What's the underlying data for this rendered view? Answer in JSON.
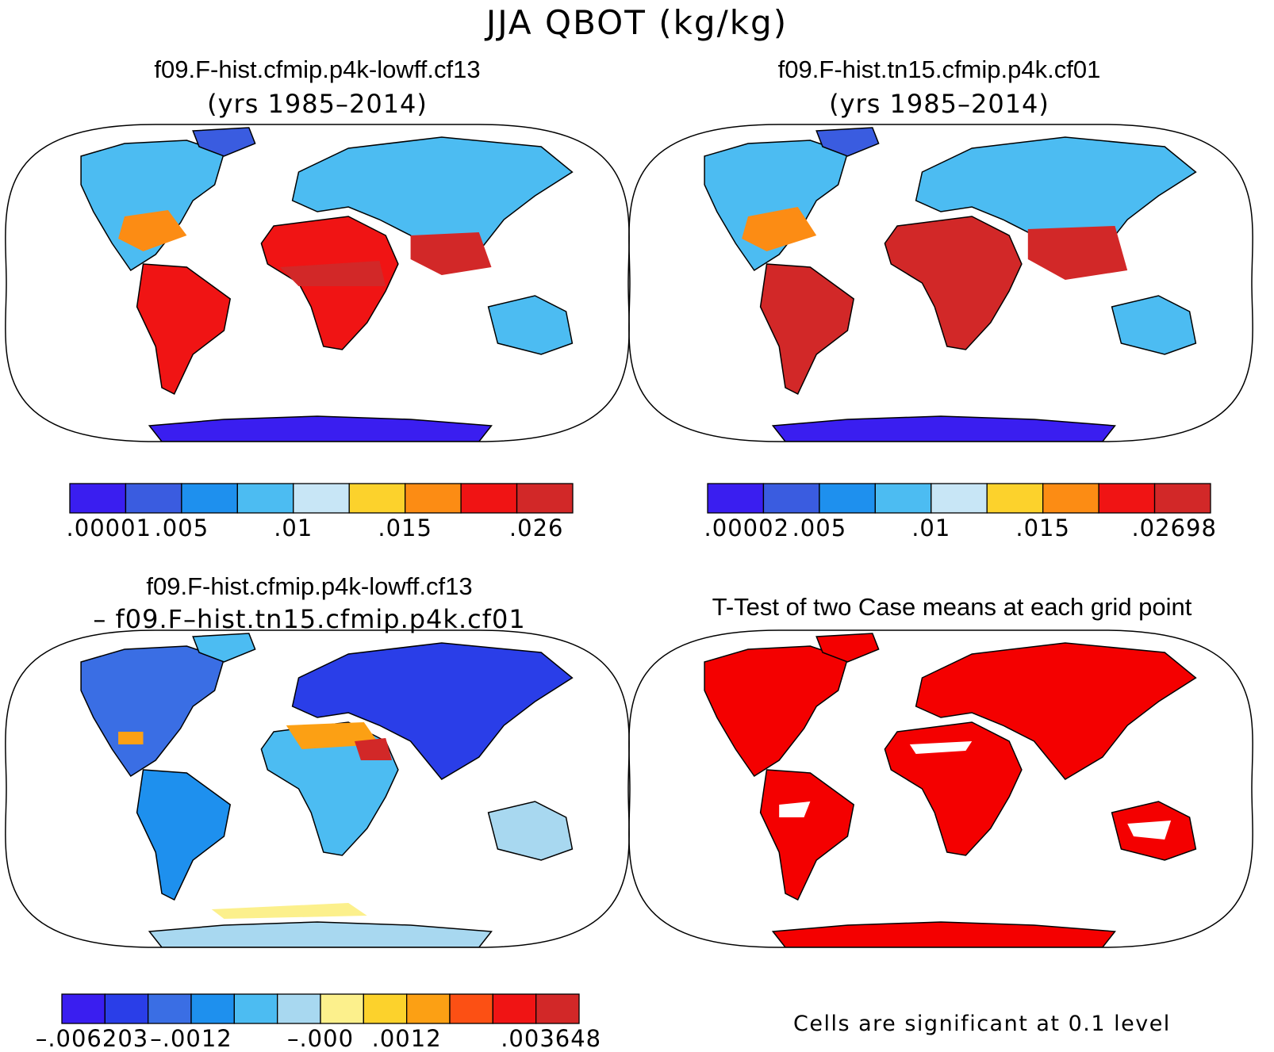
{
  "title": "JJA QBOT (kg/kg)",
  "panels": [
    {
      "name": "f09.F-hist.cfmip.p4k-lowff.cf13",
      "subtitle": "(yrs 1985–2014)",
      "colorbar": {
        "colors": [
          "#3a1ef0",
          "#3a5ce0",
          "#1e90ee",
          "#4cbcf2",
          "#c8e6f6",
          "#fcd22c",
          "#fc8c14",
          "#f01414",
          "#d22828"
        ],
        "ticks": [
          ".00001",
          ".005",
          ".01",
          ".015",
          ".026"
        ]
      }
    },
    {
      "name": "f09.F-hist.tn15.cfmip.p4k.cf01",
      "subtitle": "(yrs 1985–2014)",
      "colorbar": {
        "colors": [
          "#3a1ef0",
          "#3a5ce0",
          "#1e90ee",
          "#4cbcf2",
          "#c8e6f6",
          "#fcd22c",
          "#fc8c14",
          "#f01414",
          "#d22828"
        ],
        "ticks": [
          ".00002",
          ".005",
          ".01",
          ".015",
          ".02698"
        ]
      }
    },
    {
      "name": "f09.F-hist.cfmip.p4k-lowff.cf13",
      "subtitle": "– f09.F–hist.tn15.cfmip.p4k.cf01",
      "colorbar": {
        "colors": [
          "#3a1ef0",
          "#2a3ee8",
          "#3a6ee4",
          "#1e90ee",
          "#4cbcf2",
          "#a8d8f0",
          "#fcf08c",
          "#fcd22c",
          "#fca014",
          "#fc5014",
          "#f01414",
          "#d22828"
        ],
        "ticks": [
          "–.006203",
          "–.0012",
          "–.000",
          ".0012",
          ".003648"
        ]
      }
    },
    {
      "name": "T-Test of two Case means at each grid point",
      "footnote": "Cells are significant at 0.1 level"
    }
  ]
}
